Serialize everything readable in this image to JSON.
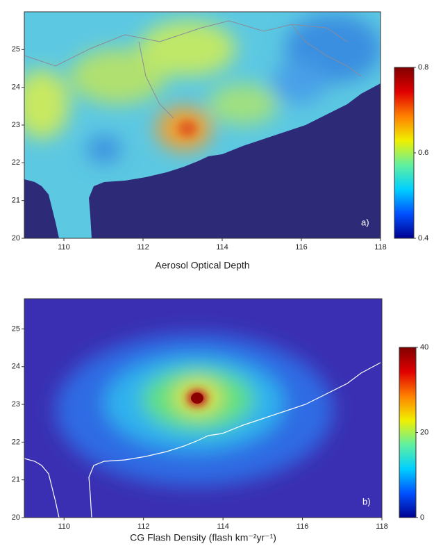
{
  "chart_data": [
    {
      "type": "heatmap",
      "panel_label": "a)",
      "xlabel": "Aerosol Optical Depth",
      "xlim": [
        109,
        118
      ],
      "ylim": [
        20,
        26
      ],
      "xticks": [
        110,
        112,
        114,
        116,
        118
      ],
      "yticks": [
        20,
        21,
        22,
        23,
        24,
        25
      ],
      "colorbar": {
        "lim": [
          0.4,
          0.8
        ],
        "ticks": [
          0.4,
          0.6,
          0.8
        ]
      },
      "colors": [
        "#00008f",
        "#0050ff",
        "#00d0ff",
        "#60f0a0",
        "#f0f000",
        "#ff8000",
        "#e00000",
        "#800000"
      ]
    },
    {
      "type": "heatmap",
      "panel_label": "b)",
      "xlabel": "CG Flash Density (flash km⁻²yr⁻¹)",
      "xlim": [
        109,
        118
      ],
      "ylim": [
        20,
        25.8
      ],
      "xticks": [
        110,
        112,
        114,
        116,
        118
      ],
      "yticks": [
        20,
        21,
        22,
        23,
        24,
        25
      ],
      "colorbar": {
        "lim": [
          0,
          40
        ],
        "ticks": [
          0,
          20,
          40
        ]
      },
      "colors": [
        "#00008f",
        "#0050ff",
        "#00d0ff",
        "#60f0a0",
        "#f0f000",
        "#ff8000",
        "#e00000",
        "#800000"
      ]
    }
  ]
}
